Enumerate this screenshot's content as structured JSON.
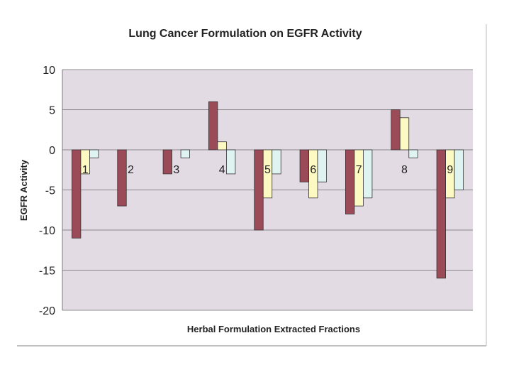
{
  "chart_data": {
    "type": "bar",
    "title": "Lung Cancer Formulation on EGFR Activity",
    "xlabel": "Herbal Formulation Extracted Fractions",
    "ylabel": "EGFR Activity",
    "categories": [
      "1",
      "2",
      "3",
      "4",
      "5",
      "6",
      "7",
      "8",
      "9"
    ],
    "ylim": [
      -20,
      10
    ],
    "yticks": [
      "10",
      "5",
      "0",
      "-5",
      "-10",
      "-15",
      "-20"
    ],
    "grid": true,
    "series": [
      {
        "color": "#9b4a58",
        "values": [
          -11,
          -7,
          -3,
          6,
          -10,
          -4,
          -8,
          5,
          -16
        ]
      },
      {
        "color": "#fdf9c2",
        "values": [
          -3,
          0,
          0,
          1,
          -6,
          -6,
          -7,
          4,
          -6
        ]
      },
      {
        "color": "#dff3f1",
        "values": [
          -1,
          0,
          -1,
          -3,
          -3,
          -4,
          -6,
          -1,
          -5
        ]
      }
    ],
    "plot_background": "#e3dbe4"
  }
}
